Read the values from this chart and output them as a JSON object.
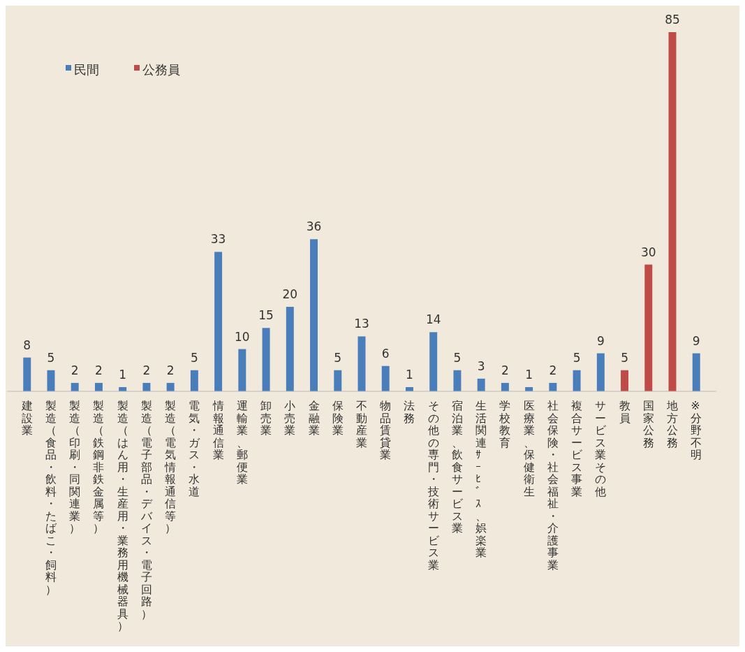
{
  "chart_data": {
    "type": "bar",
    "categories": [
      "建設業",
      "製造（食品・飲料・たばこ・飼料）",
      "製造（印刷・同関連業）",
      "製造（鉄鋼非鉄金属等）",
      "製造（はん用・生産用・業務用機械器具）",
      "製造（電子部品・デバイス・電子回路）",
      "製造（電気情報通信等）",
      "電気・ガス・水道",
      "情報通信業",
      "運輸業、郵便業",
      "卸売業",
      "小売業",
      "金融業",
      "保険業",
      "不動産業",
      "物品賃貸業",
      "法務",
      "その他の専門・技術サービス業",
      "宿泊業、飲食サービス業",
      "生活関連ｻｰﾋﾞｽ、娯楽業",
      "学校教育",
      "医療業、保健衛生",
      "社会保険・社会福祉・介護事業",
      "複合サービス事業",
      "サービス業その他",
      "教員",
      "国家公務",
      "地方公務",
      "※分野不明"
    ],
    "series": [
      {
        "name": "民間",
        "color": "#4a7ebb",
        "values": [
          8,
          5,
          2,
          2,
          1,
          2,
          2,
          5,
          33,
          10,
          15,
          20,
          36,
          5,
          13,
          6,
          1,
          14,
          5,
          3,
          2,
          1,
          2,
          5,
          9,
          null,
          null,
          null,
          9
        ]
      },
      {
        "name": "公務員",
        "color": "#be4b48",
        "values": [
          null,
          null,
          null,
          null,
          null,
          null,
          null,
          null,
          null,
          null,
          null,
          null,
          null,
          null,
          null,
          null,
          null,
          null,
          null,
          null,
          null,
          null,
          null,
          null,
          null,
          5,
          30,
          85,
          null
        ]
      }
    ],
    "data_labels": true,
    "legend": "top left"
  }
}
